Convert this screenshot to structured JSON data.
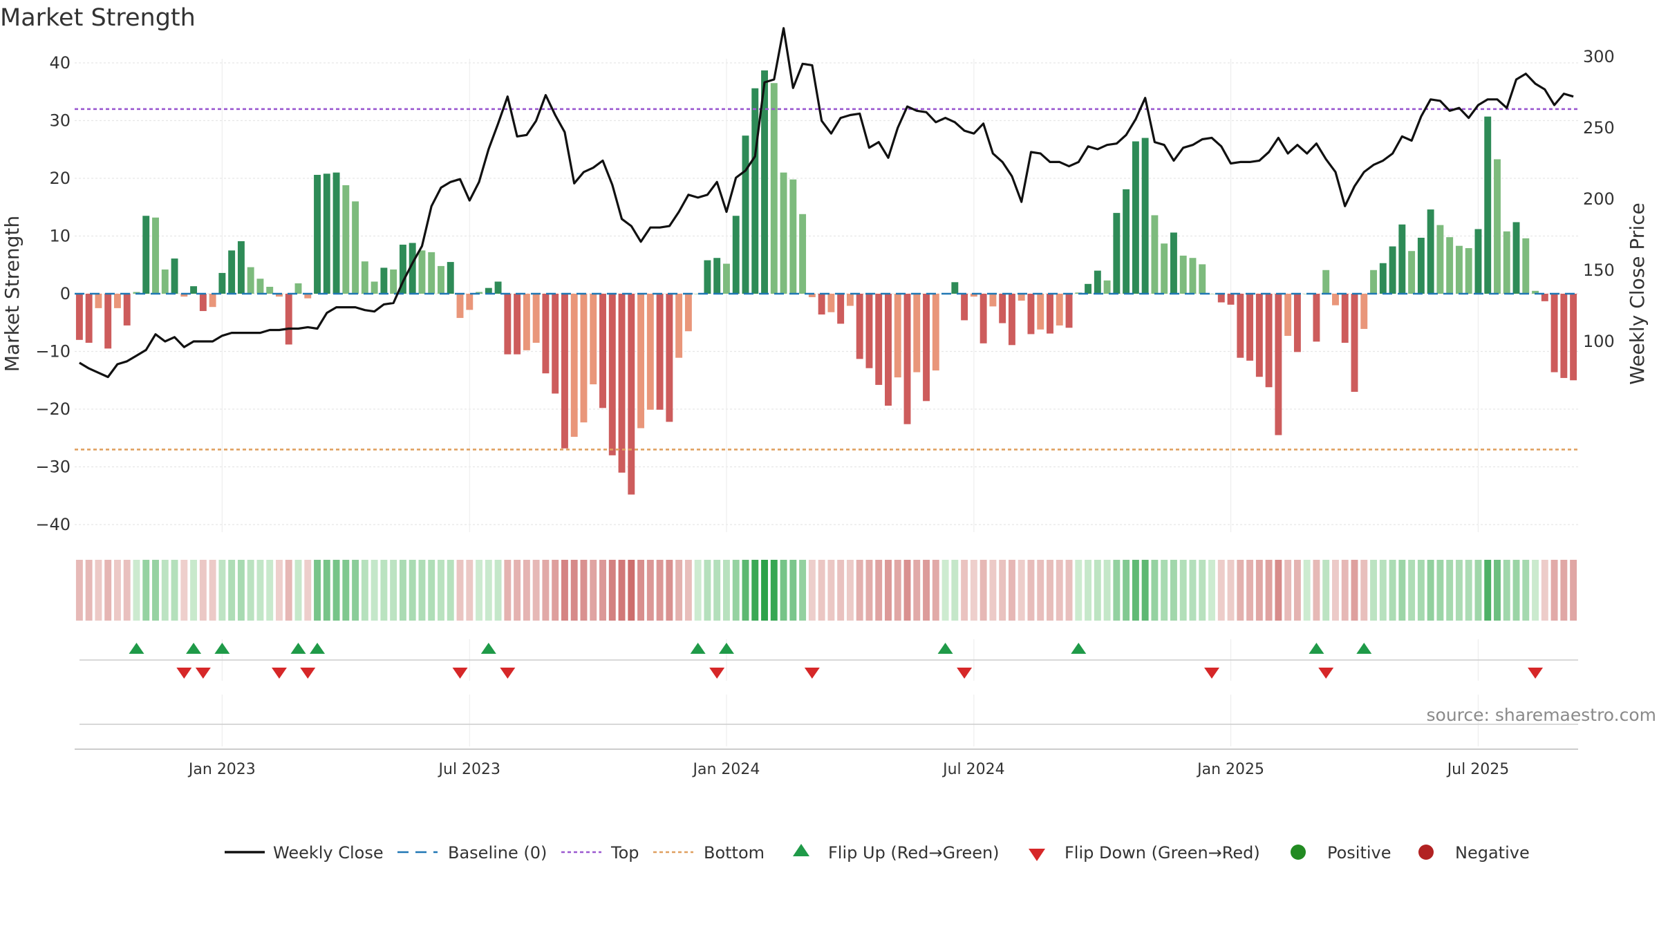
{
  "title": "Market Strength",
  "source": "source: sharemaestro.com",
  "colors": {
    "pos_strong": "#2e8b57",
    "pos_light": "#7dbb7d",
    "neg_strong": "#cd5c5c",
    "neg_light": "#e9967a",
    "close": "#111111",
    "baseline": "#1f77b4",
    "top": "#9b59d0",
    "bottom": "#e0a060",
    "flip_up": "#1f9a48",
    "flip_down": "#d62728",
    "positive_dot": "#228b22",
    "negative_dot": "#b22222"
  },
  "chart_data": {
    "type": "bar",
    "title": "Market Strength",
    "ylabel_left": "Market Strength",
    "ylabel_right": "Weekly Close Price",
    "ylim_left": [
      -45,
      40
    ],
    "ylim_right": [
      50,
      365
    ],
    "yticks_left": [
      40,
      30,
      20,
      10,
      0,
      -10,
      -20,
      -30,
      -40
    ],
    "yticks_right": [
      350,
      300,
      250,
      200,
      150,
      100
    ],
    "x_tick_labels": [
      "Jan 2023",
      "Jul 2023",
      "Jan 2024",
      "Jul 2024",
      "Jan 2025",
      "Jul 2025"
    ],
    "x_tick_weeks": [
      15,
      41,
      68,
      94,
      121,
      147
    ],
    "top_level": 32,
    "bottom_level": -27,
    "baseline": 0,
    "grid": true,
    "legend_position": "bottom",
    "series": [
      {
        "name": "Market Strength",
        "values": [
          -8,
          -8.5,
          -2.5,
          -9.5,
          -2.5,
          -5.5,
          0.3,
          13.5,
          13.2,
          4.2,
          6.1,
          -0.5,
          1.3,
          -3,
          -2.3,
          3.6,
          7.5,
          9.1,
          4.6,
          2.6,
          1.2,
          -0.5,
          -8.8,
          1.8,
          -0.8,
          20.6,
          20.8,
          21,
          18.8,
          16,
          5.6,
          2.1,
          4.5,
          4.2,
          8.5,
          8.8,
          7.5,
          7.2,
          4.8,
          5.5,
          -4.2,
          -2.8,
          0.3,
          1,
          2.1,
          -10.5,
          -10.5,
          -9.8,
          -8.5,
          -13.8,
          -17.3,
          -26.8,
          -24.8,
          -22.3,
          -15.7,
          -19.8,
          -28,
          -31,
          -34.8,
          -23.3,
          -20.1,
          -20.1,
          -22.2,
          -11.1,
          -6.5,
          0,
          5.8,
          6.2,
          5.2,
          13.5,
          27.4,
          35.6,
          38.7,
          36.5,
          21,
          19.8,
          13.8,
          -0.6,
          -3.6,
          -3.2,
          -5.2,
          -2.1,
          -11.3,
          -12.9,
          -15.8,
          -19.4,
          -14.5,
          -22.6,
          -13.6,
          -18.6,
          -13.3,
          0,
          2,
          -4.6,
          -0.5,
          -8.6,
          -2.2,
          -5.1,
          -8.9,
          -1.2,
          -7,
          -6.2,
          -6.9,
          -5.5,
          -5.9,
          0.2,
          1.7,
          4,
          2.3,
          14,
          18.1,
          26.4,
          27,
          13.6,
          8.7,
          10.6,
          6.6,
          6.2,
          5.1,
          0,
          -1.5,
          -1.9,
          -11.1,
          -11.6,
          -14.4,
          -16.2,
          -24.5,
          -7.3,
          -10.1,
          0,
          -8.3,
          4.1,
          -2,
          -8.5,
          -17,
          -6.1,
          4.1,
          5.3,
          8.2,
          12,
          7.4,
          9.7,
          14.6,
          11.9,
          9.8,
          8.3,
          7.9,
          11.2,
          30.7,
          23.3,
          10.8,
          12.4,
          9.6,
          0.5,
          -1.3,
          -13.6,
          -14.6,
          -15
        ]
      },
      {
        "name": "Weekly Close",
        "axis": "right",
        "values": [
          85,
          81,
          78,
          75,
          84,
          86,
          90,
          94,
          105,
          100,
          103,
          96,
          100,
          100,
          100,
          104,
          106,
          106,
          106,
          106,
          108,
          108,
          109,
          109,
          110,
          109,
          120,
          124,
          124,
          124,
          122,
          121,
          126,
          127,
          142,
          155,
          167,
          195,
          208,
          212,
          214,
          199,
          212,
          235,
          253,
          272,
          244,
          245,
          255,
          273,
          259,
          247,
          211,
          219,
          222,
          227,
          210,
          186,
          181,
          170,
          180,
          180,
          181,
          191,
          203,
          201,
          203,
          212,
          191,
          215,
          220,
          230,
          282,
          284,
          320,
          278,
          295,
          294,
          255,
          246,
          257,
          259,
          260,
          236,
          240,
          229,
          250,
          265,
          262,
          261,
          254,
          257,
          254,
          248,
          246,
          253,
          232,
          226,
          216,
          198,
          233,
          232,
          226,
          226,
          223,
          226,
          237,
          235,
          238,
          239,
          245,
          256,
          271,
          240,
          238,
          227,
          236,
          238,
          242,
          243,
          237,
          225,
          226,
          226,
          227,
          233,
          243,
          232,
          238,
          232,
          239,
          228,
          219,
          195,
          209,
          219,
          224,
          227,
          232,
          244,
          241,
          258,
          270,
          269,
          262,
          264,
          257,
          266,
          270,
          270,
          264,
          284,
          288,
          281,
          277,
          266,
          274,
          272
        ]
      }
    ],
    "flip_up_weeks": [
      6,
      12,
      15,
      23,
      25,
      43,
      65,
      68,
      91,
      105,
      130,
      135
    ],
    "flip_down_weeks": [
      11,
      13,
      21,
      24,
      40,
      45,
      67,
      77,
      93,
      119,
      131,
      153
    ],
    "legend": [
      "Weekly Close",
      "Baseline (0)",
      "Top",
      "Bottom",
      "Flip Up (Red→Green)",
      "Flip Down (Green→Red)",
      "Positive",
      "Negative"
    ]
  }
}
